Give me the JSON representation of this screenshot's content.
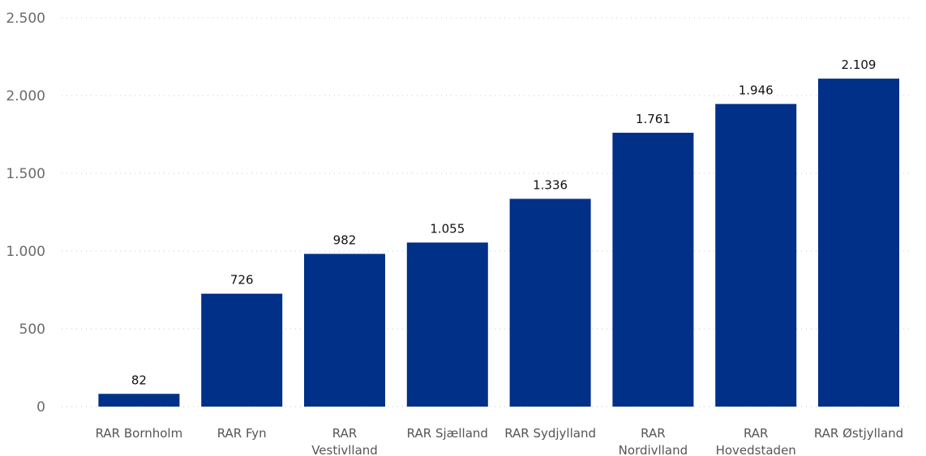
{
  "chart_data": {
    "type": "bar",
    "title": "",
    "xlabel": "",
    "ylabel": "",
    "categories": [
      [
        "RAR Bornholm"
      ],
      [
        "RAR Fyn"
      ],
      [
        "RAR",
        "Vestivlland"
      ],
      [
        "RAR Sjælland"
      ],
      [
        "RAR Sydjylland"
      ],
      [
        "RAR",
        "Nordivlland"
      ],
      [
        "RAR",
        "Hovedstaden"
      ],
      [
        "RAR Østjylland"
      ]
    ],
    "values": [
      82,
      726,
      982,
      1055,
      1336,
      1761,
      1946,
      2109
    ],
    "value_labels": [
      "82",
      "726",
      "982",
      "1.055",
      "1.336",
      "1.761",
      "1.946",
      "2.109"
    ],
    "ylim": [
      0,
      2500
    ],
    "yticks": [
      0,
      500,
      1000,
      1500,
      2000,
      2500
    ],
    "ytick_labels": [
      "0",
      "500",
      "1.000",
      "1.500",
      "2.000",
      "2.500"
    ],
    "grid": true,
    "legend": "none",
    "bar_color": "#003087"
  }
}
